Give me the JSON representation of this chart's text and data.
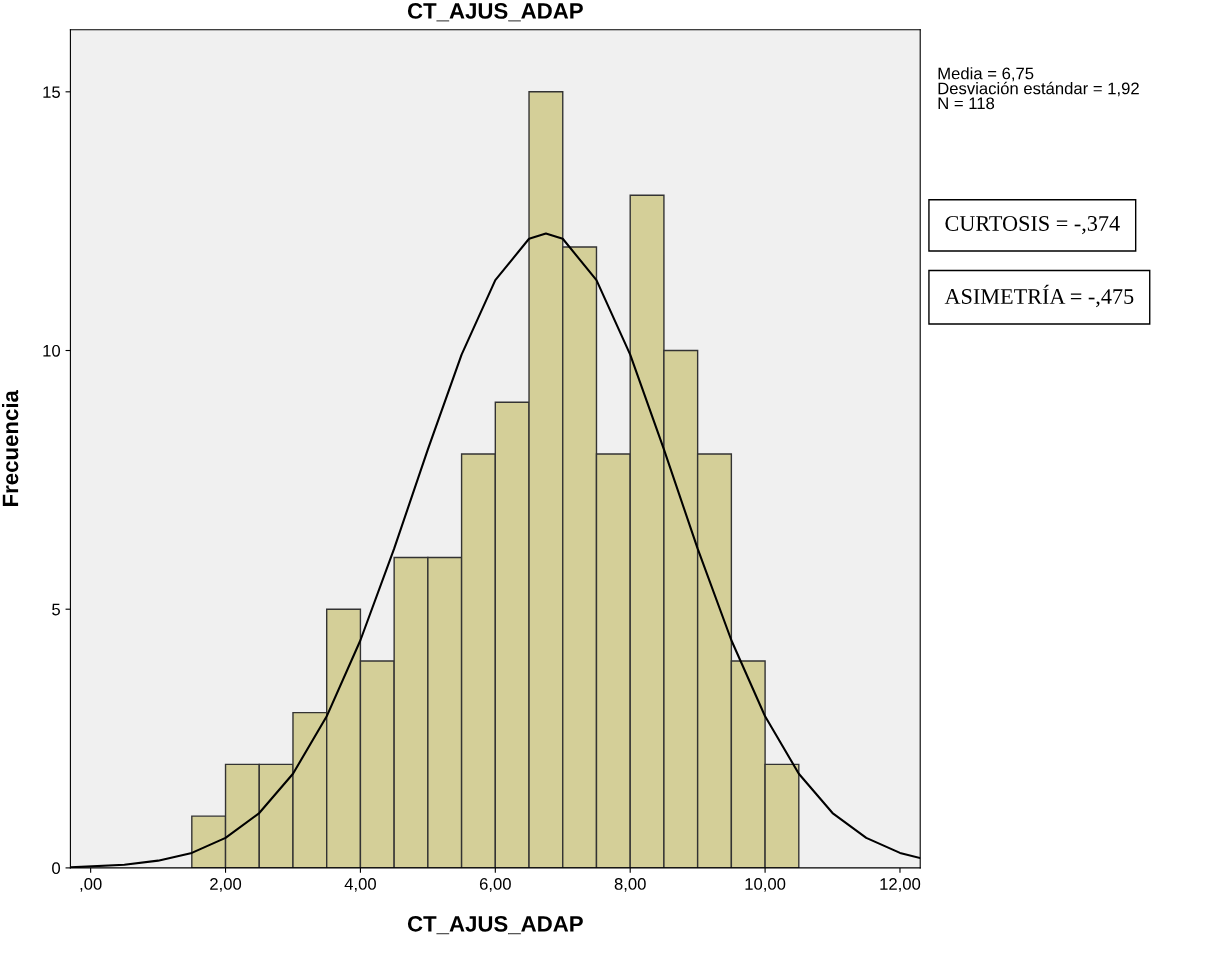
{
  "chart_data": {
    "type": "histogram",
    "title": "CT_AJUS_ADAP",
    "xlabel": "CT_AJUS_ADAP",
    "ylabel": "Frecuencia",
    "bins": [
      1.5,
      2.0,
      2.5,
      3.0,
      3.5,
      4.0,
      4.5,
      5.0,
      5.5,
      6.0,
      6.5,
      7.0,
      7.5,
      8.0,
      8.5,
      9.0,
      9.5,
      10.0,
      10.5
    ],
    "values": [
      1,
      2,
      2,
      3,
      5,
      4,
      6,
      6,
      8,
      9,
      15,
      12,
      8,
      13,
      10,
      8,
      4,
      2
    ],
    "color": "#d4cf98",
    "series": [
      {
        "type": "line",
        "color": "#000000",
        "x": [
          -0.3,
          0.5,
          1.0,
          1.5,
          2.0,
          2.5,
          3.0,
          3.5,
          4.0,
          4.5,
          5.0,
          5.5,
          6.0,
          6.5,
          6.75,
          7.0,
          7.5,
          8.0,
          8.5,
          9.0,
          9.5,
          10.0,
          10.5,
          11.0,
          11.5,
          12.0,
          12.3
        ],
        "values": [
          0.01,
          0.06,
          0.14,
          0.29,
          0.58,
          1.06,
          1.82,
          2.93,
          4.4,
          6.17,
          8.09,
          9.92,
          11.36,
          12.16,
          12.26,
          12.16,
          11.36,
          9.92,
          8.09,
          6.17,
          4.4,
          2.93,
          1.82,
          1.06,
          0.58,
          0.29,
          0.19
        ]
      }
    ],
    "xlim": [
      -0.3,
      12.3
    ],
    "ylim": [
      0,
      16.2
    ],
    "xticks": [
      {
        "value": 0,
        "label": ",00"
      },
      {
        "value": 2,
        "label": "2,00"
      },
      {
        "value": 4,
        "label": "4,00"
      },
      {
        "value": 6,
        "label": "6,00"
      },
      {
        "value": 8,
        "label": "8,00"
      },
      {
        "value": 10,
        "label": "10,00"
      },
      {
        "value": 12,
        "label": "12,00"
      }
    ],
    "yticks": [
      0,
      5,
      10,
      15
    ],
    "grid": false,
    "legend": false,
    "annotations": [
      "Media = 6,75\nDesviación estándar = 1,92\nN = 118",
      "CURTOSIS = -,374",
      "ASIMETRÍA = -,475"
    ]
  }
}
